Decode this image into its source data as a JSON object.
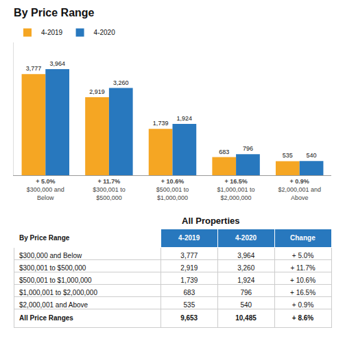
{
  "chart_data": [
    {
      "type": "bar",
      "title": "By Price Range",
      "categories": [
        "$300,000 and\nBelow",
        "$300,001 to\n$500,000",
        "$500,001 to\n$1,000,000",
        "$1,000,001 to\n$2,000,000",
        "$2,000,001 and\nAbove"
      ],
      "annotations": [
        "+ 5.0%",
        "+ 11.7%",
        "+ 10.6%",
        "+ 16.5%",
        "+ 0.9%"
      ],
      "series": [
        {
          "name": "4-2019",
          "color": "#F5A623",
          "values": [
            3777,
            2919,
            1739,
            683,
            535
          ],
          "value_labels": [
            "3,777",
            "2,919",
            "1,739",
            "683",
            "535"
          ]
        },
        {
          "name": "4-2020",
          "color": "#2878BE",
          "values": [
            3964,
            3260,
            1924,
            796,
            540
          ],
          "value_labels": [
            "3,964",
            "3,260",
            "1,924",
            "796",
            "540"
          ]
        }
      ],
      "ylim": [
        0,
        4955
      ],
      "data_labels": true,
      "legend": "upper left",
      "grid": false,
      "tick_labels": "x"
    },
    {
      "type": "table",
      "title": "All Properties",
      "color": "#2878BE",
      "header": [
        "By Price Range",
        "4-2019",
        "4-2020",
        "Change"
      ],
      "rows": [
        [
          "$300,000 and Below",
          "3,777",
          "3,964",
          "+ 5.0%"
        ],
        [
          "$300,001 to $500,000",
          "2,919",
          "3,260",
          "+ 11.7%"
        ],
        [
          "$500,001 to $1,000,000",
          "1,739",
          "1,924",
          "+ 10.6%"
        ],
        [
          "$1,000,001 to $2,000,000",
          "683",
          "796",
          "+ 16.5%"
        ],
        [
          "$2,000,001 and Above",
          "535",
          "540",
          "+ 0.9%"
        ],
        [
          "All Price Ranges",
          "9,653",
          "10,485",
          "+ 8.6%"
        ]
      ]
    }
  ]
}
